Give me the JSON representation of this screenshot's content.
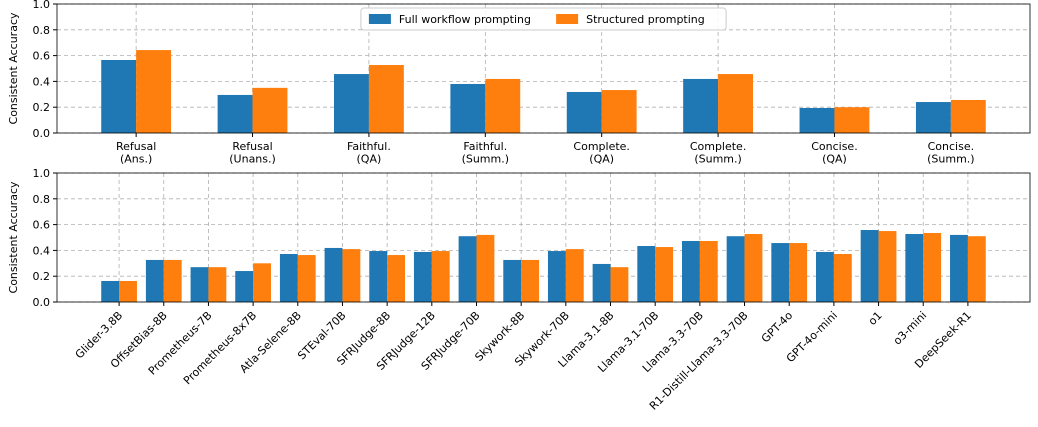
{
  "chart_data": [
    {
      "type": "bar",
      "ylabel": "Consistent Accuracy",
      "legend": "upper center",
      "grid": true,
      "categories": [
        "Refusal\n(Ans.)",
        "Refusal\n(Unans.)",
        "Faithful.\n(QA)",
        "Faithful.\n(Summ.)",
        "Complete.\n(QA)",
        "Complete.\n(Summ.)",
        "Concise.\n(QA)",
        "Concise.\n(Summ.)"
      ],
      "series": [
        {
          "name": "Full workflow prompting",
          "color": "#1f77b4",
          "values": [
            0.566,
            0.295,
            0.457,
            0.38,
            0.318,
            0.419,
            0.194,
            0.24
          ]
        },
        {
          "name": "Structured prompting",
          "color": "#ff7f0e",
          "values": [
            0.643,
            0.35,
            0.527,
            0.419,
            0.333,
            0.457,
            0.2,
            0.256
          ]
        }
      ],
      "ylim": [
        0,
        1
      ],
      "yticks": [
        {
          "value": 0,
          "label": "0.0"
        },
        0.2,
        0.4,
        0.6,
        0.8,
        {
          "value": 1,
          "label": "1.0"
        }
      ]
    },
    {
      "type": "bar",
      "ylabel": "Consistent Accuracy",
      "grid": true,
      "categories": [
        "Glider-3.8B",
        "OffsetBias-8B",
        "Prometheus-7B",
        "Prometheus-8x7B",
        "Atla-Selene-8B",
        "STEval-70B",
        "SFRJudge-8B",
        "SFRJudge-12B",
        "SFRJudge-70B",
        "Skywork-8B",
        "Skywork-70B",
        "Llama-3.1-8B",
        "Llama-3.1-70B",
        "Llama-3.3-70B",
        "R1-Distill-Llama-3.3-70B",
        "GPT-4o",
        "GPT-4o-mini",
        "o1",
        "o3-mini",
        "DeepSeek-R1"
      ],
      "series": [
        {
          "color": "#1f77b4",
          "values": [
            0.163,
            0.326,
            0.27,
            0.24,
            0.372,
            0.419,
            0.395,
            0.388,
            0.51,
            0.326,
            0.395,
            0.295,
            0.434,
            0.473,
            0.51,
            0.457,
            0.388,
            0.558,
            0.527,
            0.52
          ]
        },
        {
          "color": "#ff7f0e",
          "values": [
            0.163,
            0.326,
            0.27,
            0.3,
            0.364,
            0.41,
            0.364,
            0.395,
            0.52,
            0.326,
            0.41,
            0.27,
            0.426,
            0.473,
            0.527,
            0.457,
            0.372,
            0.55,
            0.535,
            0.51
          ]
        }
      ],
      "ylim": [
        0,
        1
      ],
      "yticks": [
        {
          "value": 0,
          "label": "0.0"
        },
        0.2,
        0.4,
        0.6,
        0.8,
        {
          "value": 1,
          "label": "1.0"
        }
      ]
    }
  ]
}
